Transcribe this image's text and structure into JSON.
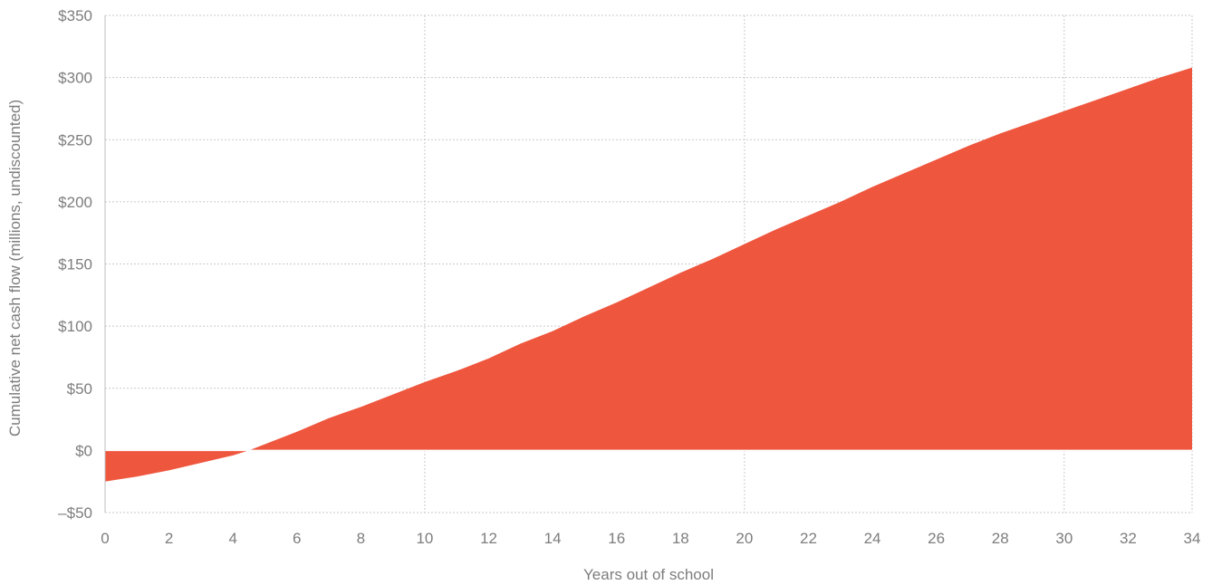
{
  "chart_data": {
    "type": "area",
    "title": "",
    "xlabel": "Years out of school",
    "ylabel": "Cumulative net cash flow (millions, undiscounted)",
    "xlim": [
      0,
      34
    ],
    "ylim": [
      -50,
      350
    ],
    "x_ticks": [
      0,
      2,
      4,
      6,
      8,
      10,
      12,
      14,
      16,
      18,
      20,
      22,
      24,
      26,
      28,
      30,
      32,
      34
    ],
    "x_tick_labels": [
      "0",
      "2",
      "4",
      "6",
      "8",
      "10",
      "12",
      "14",
      "16",
      "18",
      "20",
      "22",
      "24",
      "26",
      "28",
      "30",
      "32",
      "34"
    ],
    "y_ticks": [
      -50,
      0,
      50,
      100,
      150,
      200,
      250,
      300,
      350
    ],
    "y_tick_labels": [
      "–$50",
      "$0",
      "$50",
      "$100",
      "$150",
      "$200",
      "$250",
      "$300",
      "$350"
    ],
    "grid": true,
    "legend": "none",
    "colors": {
      "area": "#ef563e",
      "grid": "#c9c9c9",
      "text": "#7d7d7d"
    },
    "series": [
      {
        "x": [
          0,
          1,
          2,
          3,
          4,
          4.5,
          5,
          6,
          7,
          8,
          9,
          10,
          11,
          12,
          13,
          14,
          15,
          16,
          17,
          18,
          19,
          20,
          21,
          22,
          23,
          24,
          25,
          26,
          27,
          28,
          29,
          30,
          31,
          32,
          33,
          34
        ],
        "values": [
          -25,
          -21,
          -16,
          -10,
          -4,
          0,
          5,
          15,
          26,
          35,
          45,
          55,
          64,
          74,
          86,
          96,
          108,
          119,
          131,
          143,
          154,
          166,
          178,
          189,
          200,
          212,
          223,
          234,
          245,
          255,
          264,
          273,
          282,
          291,
          300,
          308
        ]
      }
    ]
  }
}
